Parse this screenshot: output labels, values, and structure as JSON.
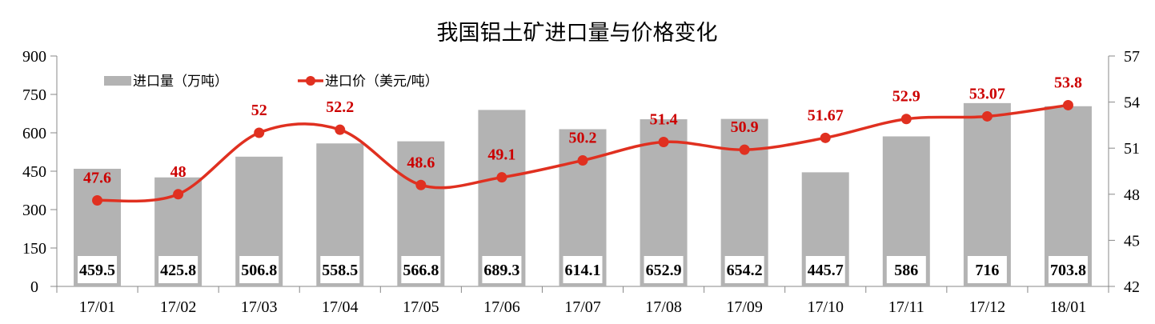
{
  "chart_data": {
    "type": "bar+line",
    "title": "我国铝土矿进口量与价格变化",
    "categories": [
      "17/01",
      "17/02",
      "17/03",
      "17/04",
      "17/05",
      "17/06",
      "17/07",
      "17/08",
      "17/09",
      "17/10",
      "17/11",
      "17/12",
      "18/01"
    ],
    "series": [
      {
        "name": "进口量（万吨）",
        "type": "bar",
        "axis": "left",
        "color": "#b3b3b3",
        "values": [
          459.5,
          425.8,
          506.8,
          558.5,
          566.8,
          689.3,
          614.1,
          652.9,
          654.2,
          445.7,
          586,
          716,
          703.8
        ],
        "labels": [
          "459.5",
          "425.8",
          "506.8",
          "558.5",
          "566.8",
          "689.3",
          "614.1",
          "652.9",
          "654.2",
          "445.7",
          "586",
          "716",
          "703.8"
        ]
      },
      {
        "name": "进口价（美元/吨）",
        "type": "line",
        "axis": "right",
        "color": "#e03020",
        "smooth": true,
        "values": [
          47.6,
          48,
          52,
          52.2,
          48.6,
          49.1,
          50.2,
          51.4,
          50.9,
          51.67,
          52.9,
          53.07,
          53.8
        ],
        "labels": [
          "47.6",
          "48",
          "52",
          "52.2",
          "48.6",
          "49.1",
          "50.2",
          "51.4",
          "50.9",
          "51.67",
          "52.9",
          "53.07",
          "53.8"
        ]
      }
    ],
    "y_left": {
      "range": [
        0,
        900
      ],
      "ticks": [
        "0",
        "150",
        "300",
        "450",
        "600",
        "750",
        "900"
      ]
    },
    "y_right": {
      "range": [
        42,
        57
      ],
      "ticks": [
        "42",
        "45",
        "48",
        "51",
        "54",
        "57"
      ]
    },
    "label_color": "#cc0000",
    "grid": false,
    "legend": "top-left"
  }
}
